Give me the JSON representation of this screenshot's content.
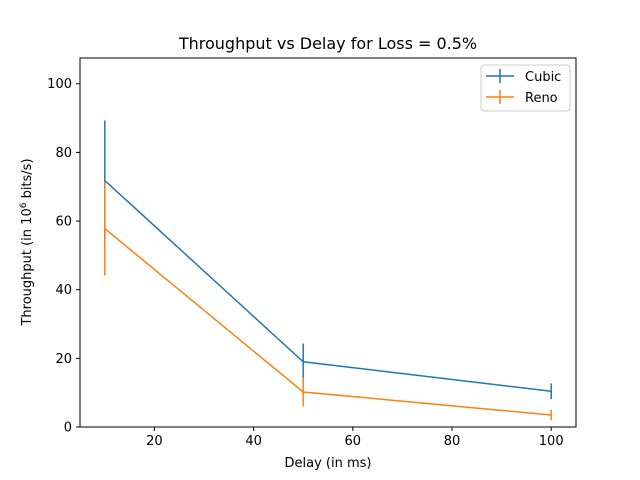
{
  "chart_data": {
    "type": "line",
    "title": "Throughput vs Delay for Loss = 0.5%",
    "xlabel": "Delay (in ms)",
    "ylabel_prefix": "Throughput (in 10",
    "ylabel_sup": "6",
    "ylabel_suffix": " bits/s)",
    "xlim": [
      5,
      105
    ],
    "ylim": [
      0,
      107.5
    ],
    "xticks": [
      20,
      40,
      60,
      80,
      100
    ],
    "yticks": [
      0,
      20,
      40,
      60,
      80,
      100
    ],
    "grid": false,
    "legend_position": "top-right",
    "series": [
      {
        "name": "Cubic",
        "color": "#1f77b4",
        "x": [
          10,
          50,
          100
        ],
        "y": [
          71.8,
          19.0,
          10.4
        ],
        "yerr": [
          17.5,
          5.3,
          2.3
        ]
      },
      {
        "name": "Reno",
        "color": "#ff7f0e",
        "x": [
          10,
          50,
          100
        ],
        "y": [
          57.8,
          10.2,
          3.5
        ],
        "yerr": [
          13.7,
          4.2,
          1.5
        ]
      }
    ]
  }
}
